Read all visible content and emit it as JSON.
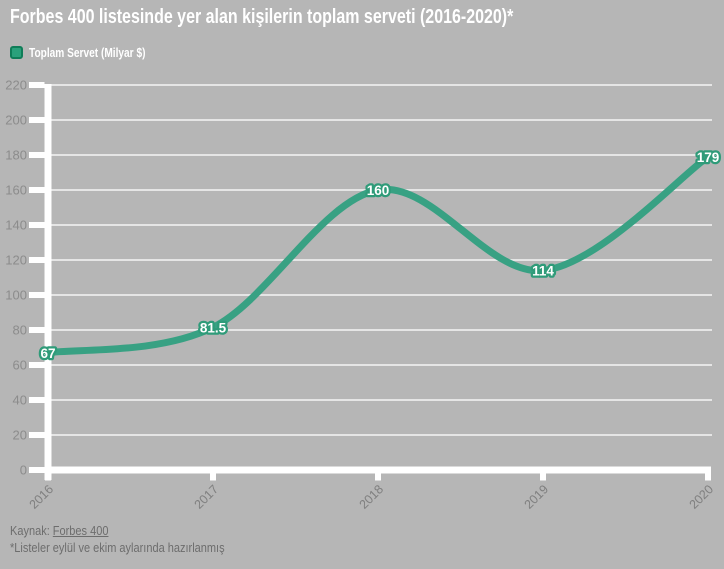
{
  "title": "Forbes 400 listesinde yer alan kişilerin toplam serveti (2016-2020)*",
  "legend": {
    "label": "Toplam Servet (Milyar $)",
    "swatch_color": "#2aa17b",
    "swatch_border_color": "#0f7d58"
  },
  "footer": {
    "source_prefix": "Kaynak: ",
    "source_link": "Forbes 400",
    "note": "*Listeler eylül ve ekim aylarında hazırlanmış"
  },
  "colors": {
    "background": "#b6b6b6",
    "line": "#38a183",
    "axis": "#ffffff",
    "gridline": "rgba(255,255,255,0.65)",
    "y_tick_label": "#8c8c8c",
    "x_tick_label": "#7f7f7f",
    "data_label_fill": "#ffffff",
    "data_label_stroke": "#2f9b79",
    "title": "#ffffff",
    "footer_text": "#6d6d6d"
  },
  "chart_data": {
    "type": "line",
    "title": "Forbes 400 listesinde yer alan kişilerin toplam serveti (2016-2020)*",
    "series": [
      {
        "name": "Toplam Servet (Milyar $)",
        "values": [
          67,
          81.5,
          160,
          114,
          179
        ],
        "labels": [
          "67",
          "81.5",
          "160",
          "114",
          "179"
        ]
      }
    ],
    "categories": [
      "2016",
      "2017",
      "2018",
      "2019",
      "2020"
    ],
    "xlabel": "",
    "ylabel": "",
    "ylim": [
      0,
      220
    ],
    "ytick_step": 20,
    "yticks": [
      0,
      20,
      40,
      60,
      80,
      100,
      120,
      140,
      160,
      180,
      200,
      220
    ],
    "grid": true,
    "smooth": true,
    "legend_position": "top-left"
  }
}
